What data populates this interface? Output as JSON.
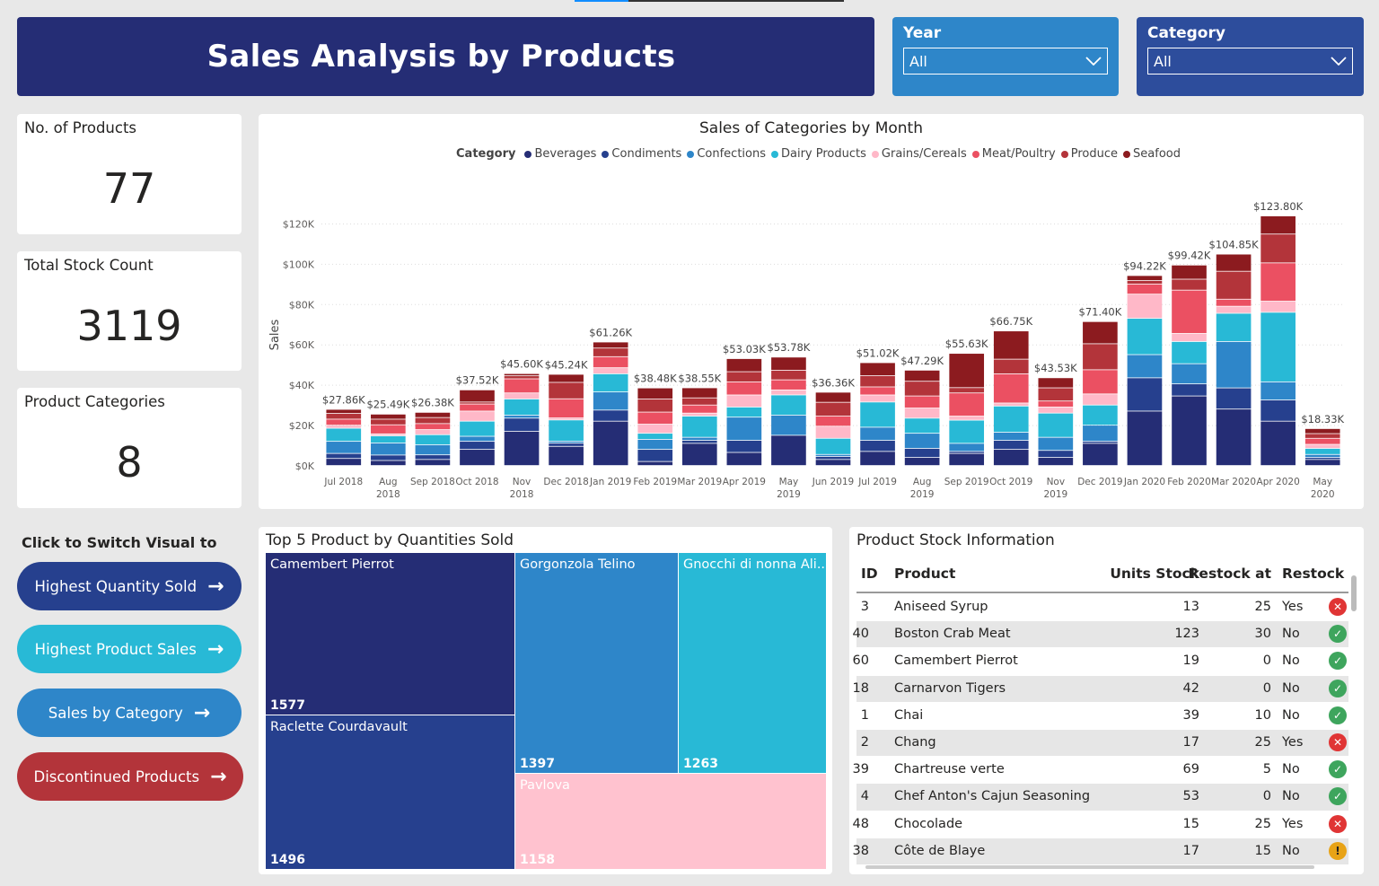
{
  "header": {
    "title": "Sales Analysis by Products"
  },
  "slicers": {
    "year": {
      "label": "Year",
      "value": "All"
    },
    "category": {
      "label": "Category",
      "value": "All"
    }
  },
  "cards": [
    {
      "title": "No. of Products",
      "value": "77"
    },
    {
      "title": "Total Stock Count",
      "value": "3119"
    },
    {
      "title": "Product Categories",
      "value": "8"
    }
  ],
  "switch": {
    "title": "Click to Switch Visual to",
    "buttons": [
      {
        "label": "Highest Quantity Sold",
        "color": "#26408e"
      },
      {
        "label": "Highest Product Sales",
        "color": "#28b9d6"
      },
      {
        "label": "Sales by Category",
        "color": "#2e86c9"
      },
      {
        "label": "Discontinued Products",
        "color": "#b3343a"
      }
    ]
  },
  "chart_data": {
    "type": "bar",
    "stacked": true,
    "title": "Sales of Categories by Month",
    "legend_title": "Category",
    "ylabel": "Sales",
    "ylim": [
      0,
      130000
    ],
    "yticks": [
      0,
      20000,
      40000,
      60000,
      80000,
      100000,
      120000
    ],
    "ytick_labels": [
      "$0K",
      "$20K",
      "$40K",
      "$60K",
      "$80K",
      "$100K",
      "$120K"
    ],
    "categories": [
      "Jul 2018",
      "Aug 2018",
      "Sep 2018",
      "Oct 2018",
      "Nov 2018",
      "Dec 2018",
      "Jan 2019",
      "Feb 2019",
      "Mar 2019",
      "Apr 2019",
      "May 2019",
      "Jun 2019",
      "Jul 2019",
      "Aug 2019",
      "Sep 2019",
      "Oct 2019",
      "Nov 2019",
      "Dec 2019",
      "Jan 2020",
      "Feb 2020",
      "Mar 2020",
      "Apr 2020",
      "May 2020"
    ],
    "totals": [
      27860,
      25490,
      26380,
      37520,
      45600,
      45240,
      61260,
      38480,
      38550,
      53030,
      53780,
      36360,
      51020,
      47290,
      55630,
      66750,
      43530,
      71400,
      94220,
      99420,
      104850,
      123800,
      18330
    ],
    "total_labels": [
      "$27.86K",
      "$25.49K",
      "$26.38K",
      "$37.52K",
      "$45.60K",
      "$45.24K",
      "$61.26K",
      "$38.48K",
      "$38.55K",
      "$53.03K",
      "$53.78K",
      "$36.36K",
      "$51.02K",
      "$47.29K",
      "$55.63K",
      "$66.75K",
      "$43.53K",
      "$71.40K",
      "$94.22K",
      "$99.42K",
      "$104.85K",
      "$123.80K",
      "$18.33K"
    ],
    "series": [
      {
        "name": "Beverages",
        "color": "#252d75",
        "values": [
          3500,
          2500,
          3000,
          8000,
          17000,
          9500,
          22000,
          2000,
          11000,
          6500,
          15000,
          3000,
          7000,
          4000,
          6000,
          8000,
          4000,
          11000,
          27000,
          34500,
          28000,
          22000,
          3000
        ]
      },
      {
        "name": "Condiments",
        "color": "#26408e",
        "values": [
          2500,
          2700,
          2300,
          4000,
          6500,
          1600,
          5500,
          6000,
          1500,
          6000,
          0,
          1500,
          5500,
          4500,
          1000,
          4500,
          3500,
          1000,
          16500,
          6000,
          10500,
          10500,
          1000
        ]
      },
      {
        "name": "Confections",
        "color": "#2e86c9",
        "values": [
          6000,
          6000,
          5000,
          2500,
          1500,
          1000,
          9000,
          5000,
          1500,
          11500,
          10000,
          1000,
          6500,
          7500,
          4000,
          4000,
          6500,
          8000,
          11500,
          10000,
          23000,
          9000,
          1500
        ]
      },
      {
        "name": "Dairy Products",
        "color": "#28b9d6",
        "values": [
          6500,
          3500,
          5000,
          7500,
          8000,
          10500,
          9000,
          3000,
          10500,
          5000,
          10000,
          8000,
          12500,
          7500,
          11500,
          13000,
          12000,
          10000,
          18000,
          11000,
          14000,
          34500,
          3000
        ]
      },
      {
        "name": "Grains/Cereals",
        "color": "#ffb8c8",
        "values": [
          1500,
          1000,
          2500,
          5000,
          3000,
          1000,
          3000,
          4500,
          1500,
          6000,
          2500,
          6000,
          3500,
          5000,
          2000,
          1500,
          3000,
          5500,
          12000,
          4000,
          3500,
          5500,
          2000
        ]
      },
      {
        "name": "Meat/Poultry",
        "color": "#eb5062",
        "values": [
          3000,
          4500,
          3000,
          3500,
          7000,
          9500,
          5500,
          6000,
          4000,
          6500,
          5000,
          5000,
          4000,
          6000,
          11500,
          14500,
          3000,
          12000,
          5000,
          21500,
          3500,
          19000,
          3000
        ]
      },
      {
        "name": "Produce",
        "color": "#b3343a",
        "values": [
          2860,
          2790,
          3000,
          1000,
          1500,
          8140,
          4260,
          6480,
          3550,
          5030,
          4780,
          6860,
          5520,
          7290,
          2630,
          7250,
          6530,
          12900,
          1720,
          5420,
          13850,
          14300,
          2330
        ]
      },
      {
        "name": "Seafood",
        "color": "#8c1b1f",
        "values": [
          2000,
          2500,
          2580,
          6020,
          1100,
          4000,
          3000,
          5500,
          5000,
          6500,
          6500,
          5000,
          6500,
          5500,
          17000,
          14000,
          5000,
          11000,
          2500,
          7000,
          8500,
          9000,
          2500
        ]
      }
    ]
  },
  "treemap": {
    "title": "Top 5 Product by Quantities Sold",
    "items": [
      {
        "name": "Camembert Pierrot",
        "value": "1577",
        "color": "#252d75"
      },
      {
        "name": "Raclette Courdavault",
        "value": "1496",
        "color": "#26408e"
      },
      {
        "name": "Gorgonzola Telino",
        "value": "1397",
        "color": "#2e86c9"
      },
      {
        "name": "Gnocchi di nonna Ali...",
        "value": "1263",
        "color": "#28b9d6"
      },
      {
        "name": "Pavlova",
        "value": "1158",
        "color": "#ffc2cf"
      }
    ]
  },
  "stock_table": {
    "title": "Product Stock Information",
    "columns": [
      "ID",
      "Product",
      "Units Stock",
      "Restock at",
      "Restock"
    ],
    "rows": [
      {
        "id": "3",
        "product": "Aniseed Syrup",
        "units": "13",
        "restock_at": "25",
        "restock": "Yes",
        "status": "no"
      },
      {
        "id": "40",
        "product": "Boston Crab Meat",
        "units": "123",
        "restock_at": "30",
        "restock": "No",
        "status": "ok"
      },
      {
        "id": "60",
        "product": "Camembert Pierrot",
        "units": "19",
        "restock_at": "0",
        "restock": "No",
        "status": "ok"
      },
      {
        "id": "18",
        "product": "Carnarvon Tigers",
        "units": "42",
        "restock_at": "0",
        "restock": "No",
        "status": "ok"
      },
      {
        "id": "1",
        "product": "Chai",
        "units": "39",
        "restock_at": "10",
        "restock": "No",
        "status": "ok"
      },
      {
        "id": "2",
        "product": "Chang",
        "units": "17",
        "restock_at": "25",
        "restock": "Yes",
        "status": "no"
      },
      {
        "id": "39",
        "product": "Chartreuse verte",
        "units": "69",
        "restock_at": "5",
        "restock": "No",
        "status": "ok"
      },
      {
        "id": "4",
        "product": "Chef Anton's Cajun Seasoning",
        "units": "53",
        "restock_at": "0",
        "restock": "No",
        "status": "ok"
      },
      {
        "id": "48",
        "product": "Chocolade",
        "units": "15",
        "restock_at": "25",
        "restock": "Yes",
        "status": "no"
      },
      {
        "id": "38",
        "product": "Côte de Blaye",
        "units": "17",
        "restock_at": "15",
        "restock": "No",
        "status": "warn"
      }
    ]
  }
}
